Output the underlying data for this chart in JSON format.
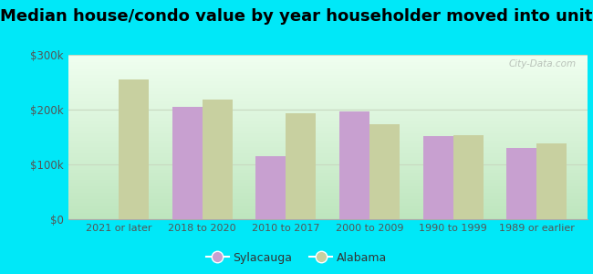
{
  "title": "Median house/condo value by year householder moved into unit",
  "categories": [
    "2021 or later",
    "2018 to 2020",
    "2010 to 2017",
    "2000 to 2009",
    "1990 to 1999",
    "1989 or earlier"
  ],
  "sylacauga_values": [
    0,
    205000,
    115000,
    197000,
    152000,
    130000
  ],
  "alabama_values": [
    255000,
    218000,
    193000,
    173000,
    153000,
    138000
  ],
  "sylacauga_color": "#c8a0d0",
  "alabama_color": "#c8d0a0",
  "background_outer": "#00e8f8",
  "ylim": [
    0,
    300000
  ],
  "ytick_labels": [
    "$0",
    "$100k",
    "$200k",
    "$300k"
  ],
  "ytick_values": [
    0,
    100000,
    200000,
    300000
  ],
  "watermark": "City-Data.com",
  "legend_labels": [
    "Sylacauga",
    "Alabama"
  ],
  "title_fontsize": 13,
  "grid_color": "#c8d8c0",
  "plot_bg_bottom": "#d8efd0",
  "plot_bg_top": "#f0fff0"
}
